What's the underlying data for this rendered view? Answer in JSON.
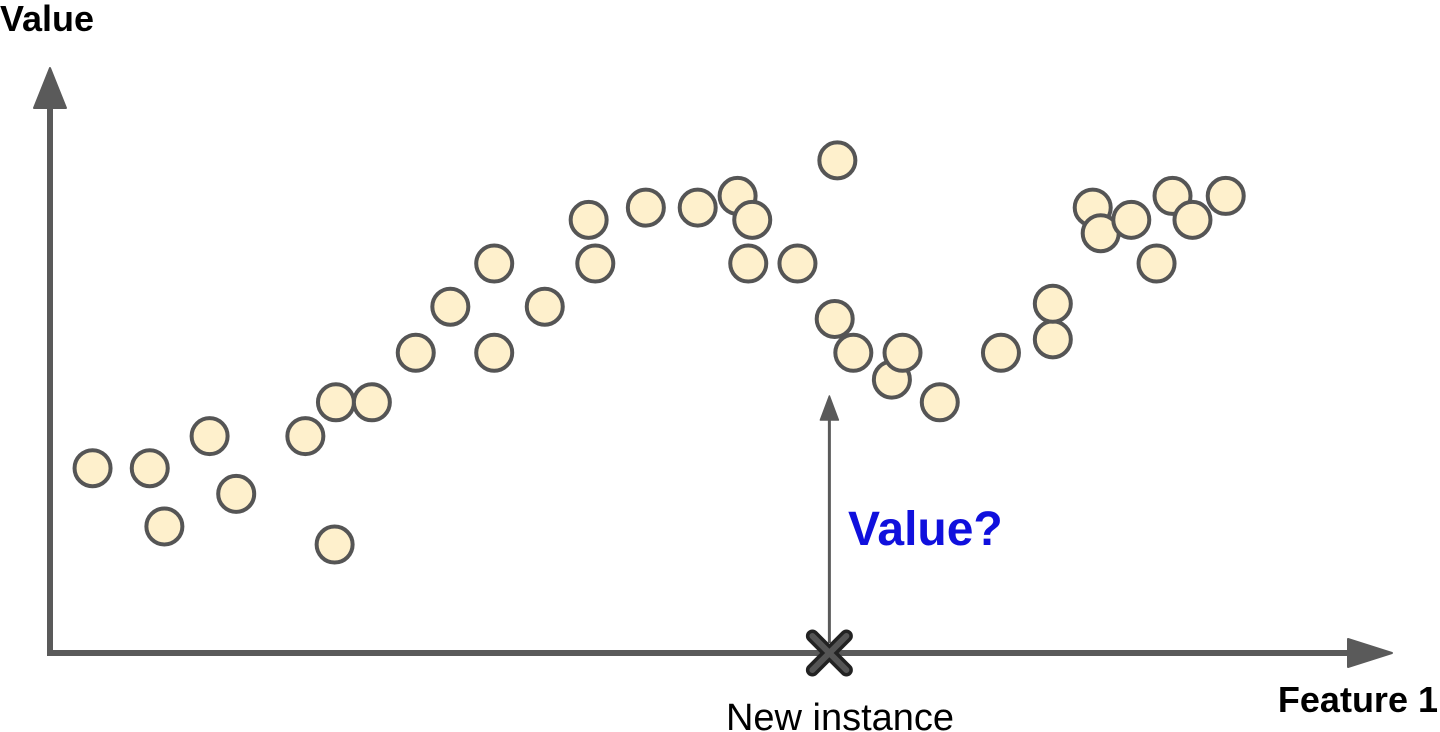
{
  "chart_data": {
    "type": "scatter",
    "ylabel": "Value",
    "xlabel": "Feature 1",
    "grid": false,
    "legend": "none",
    "xlim": [
      0,
      100
    ],
    "ylim": [
      0,
      100
    ],
    "colors": {
      "point_fill": "#fef0cc",
      "point_stroke": "#555555",
      "axis": "#5a5a5a",
      "query_text": "#1010dd",
      "marker": "#222222"
    },
    "points": [
      {
        "x": 3.2,
        "y": 31.7
      },
      {
        "x": 7.5,
        "y": 31.7
      },
      {
        "x": 8.6,
        "y": 21.7
      },
      {
        "x": 12.0,
        "y": 37.2
      },
      {
        "x": 14.0,
        "y": 27.3
      },
      {
        "x": 19.2,
        "y": 37.2
      },
      {
        "x": 21.5,
        "y": 43.0
      },
      {
        "x": 21.4,
        "y": 18.6
      },
      {
        "x": 24.2,
        "y": 43.0
      },
      {
        "x": 27.5,
        "y": 51.5
      },
      {
        "x": 30.1,
        "y": 59.4
      },
      {
        "x": 33.4,
        "y": 66.8
      },
      {
        "x": 33.4,
        "y": 51.5
      },
      {
        "x": 37.2,
        "y": 59.4
      },
      {
        "x": 40.5,
        "y": 74.3
      },
      {
        "x": 41.0,
        "y": 66.8
      },
      {
        "x": 44.8,
        "y": 76.4
      },
      {
        "x": 48.7,
        "y": 76.4
      },
      {
        "x": 51.7,
        "y": 78.4
      },
      {
        "x": 52.8,
        "y": 74.3
      },
      {
        "x": 52.5,
        "y": 66.8
      },
      {
        "x": 56.2,
        "y": 66.8
      },
      {
        "x": 59.2,
        "y": 84.5
      },
      {
        "x": 59.0,
        "y": 57.3
      },
      {
        "x": 60.4,
        "y": 51.5
      },
      {
        "x": 63.3,
        "y": 46.9
      },
      {
        "x": 64.1,
        "y": 51.5
      },
      {
        "x": 66.9,
        "y": 43.0
      },
      {
        "x": 71.5,
        "y": 51.5
      },
      {
        "x": 75.4,
        "y": 53.8
      },
      {
        "x": 75.4,
        "y": 59.9
      },
      {
        "x": 78.4,
        "y": 76.4
      },
      {
        "x": 79.0,
        "y": 72.0
      },
      {
        "x": 81.3,
        "y": 74.3
      },
      {
        "x": 83.2,
        "y": 66.8
      },
      {
        "x": 84.4,
        "y": 78.4
      },
      {
        "x": 85.9,
        "y": 74.3
      },
      {
        "x": 88.4,
        "y": 78.4
      }
    ],
    "query": {
      "x": 58.6,
      "label": "New instance",
      "question": "Value?"
    }
  }
}
